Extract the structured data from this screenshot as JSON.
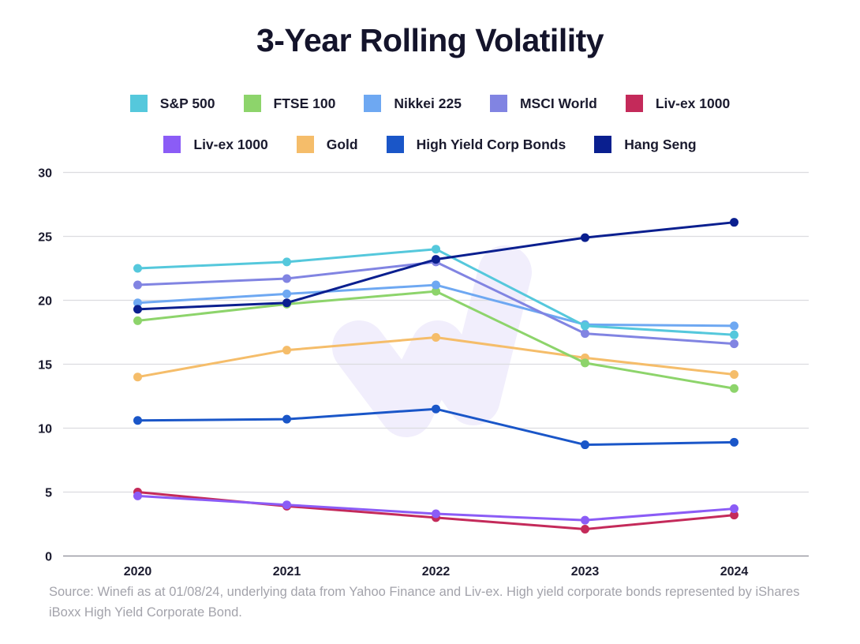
{
  "chart_data": {
    "type": "line",
    "title": "3-Year Rolling Volatility",
    "xlabel": "",
    "ylabel": "",
    "x": [
      "2020",
      "2021",
      "2022",
      "2023",
      "2024"
    ],
    "ylim": [
      0,
      30
    ],
    "yticks": [
      "0",
      "5",
      "10",
      "15",
      "20",
      "25",
      "30"
    ],
    "ytick_values": [
      0,
      5,
      10,
      15,
      20,
      25,
      30
    ],
    "grid": true,
    "legend_position": "top",
    "series": [
      {
        "name": "S&P 500",
        "color": "#55c8dc",
        "values": [
          22.5,
          23.0,
          24.0,
          18.0,
          17.3
        ]
      },
      {
        "name": "FTSE 100",
        "color": "#8dd46b",
        "values": [
          18.4,
          19.7,
          20.7,
          15.1,
          13.1
        ]
      },
      {
        "name": "Nikkei 225",
        "color": "#6ea8f2",
        "values": [
          19.8,
          20.5,
          21.2,
          18.1,
          18.0
        ]
      },
      {
        "name": "MSCI World",
        "color": "#8184e2",
        "values": [
          21.2,
          21.7,
          23.0,
          17.4,
          16.6
        ]
      },
      {
        "name": "Liv-ex 1000",
        "color": "#c42a5a",
        "values": [
          5.0,
          3.9,
          3.0,
          2.1,
          3.2
        ]
      },
      {
        "name": "Liv-ex 1000",
        "color": "#8b5cf6",
        "values": [
          4.7,
          4.0,
          3.3,
          2.8,
          3.7
        ]
      },
      {
        "name": "Gold",
        "color": "#f5bd6a",
        "values": [
          14.0,
          16.1,
          17.1,
          15.5,
          14.2
        ]
      },
      {
        "name": "High Yield Corp Bonds",
        "color": "#1a56c8",
        "values": [
          10.6,
          10.7,
          11.5,
          8.7,
          8.9
        ]
      },
      {
        "name": "Hang Seng",
        "color": "#0a1f8f",
        "values": [
          19.3,
          19.8,
          23.2,
          24.9,
          26.1
        ]
      }
    ],
    "draw_order": [
      4,
      5,
      7,
      6,
      1,
      2,
      3,
      0,
      8
    ],
    "source": "Source: Winefi as at 01/08/24, underlying data from Yahoo Finance and Liv-ex. High yield corporate bonds represented by iShares iBoxx High Yield Corporate Bond."
  },
  "legend": {
    "row1": [
      {
        "label": "S&P 500",
        "color": "#55c8dc"
      },
      {
        "label": "FTSE 100",
        "color": "#8dd46b"
      },
      {
        "label": "Nikkei 225",
        "color": "#6ea8f2"
      },
      {
        "label": "MSCI World",
        "color": "#8184e2"
      },
      {
        "label": "Liv-ex 1000",
        "color": "#c42a5a"
      }
    ],
    "row2": [
      {
        "label": "Liv-ex 1000",
        "color": "#8b5cf6"
      },
      {
        "label": "Gold",
        "color": "#f5bd6a"
      },
      {
        "label": "High Yield Corp Bonds",
        "color": "#1a56c8"
      },
      {
        "label": "Hang Seng",
        "color": "#0a1f8f"
      }
    ]
  },
  "colors": {
    "gridline": "#dcdce0",
    "axis": "#9a9aa4",
    "watermark": "#f1eefc"
  }
}
